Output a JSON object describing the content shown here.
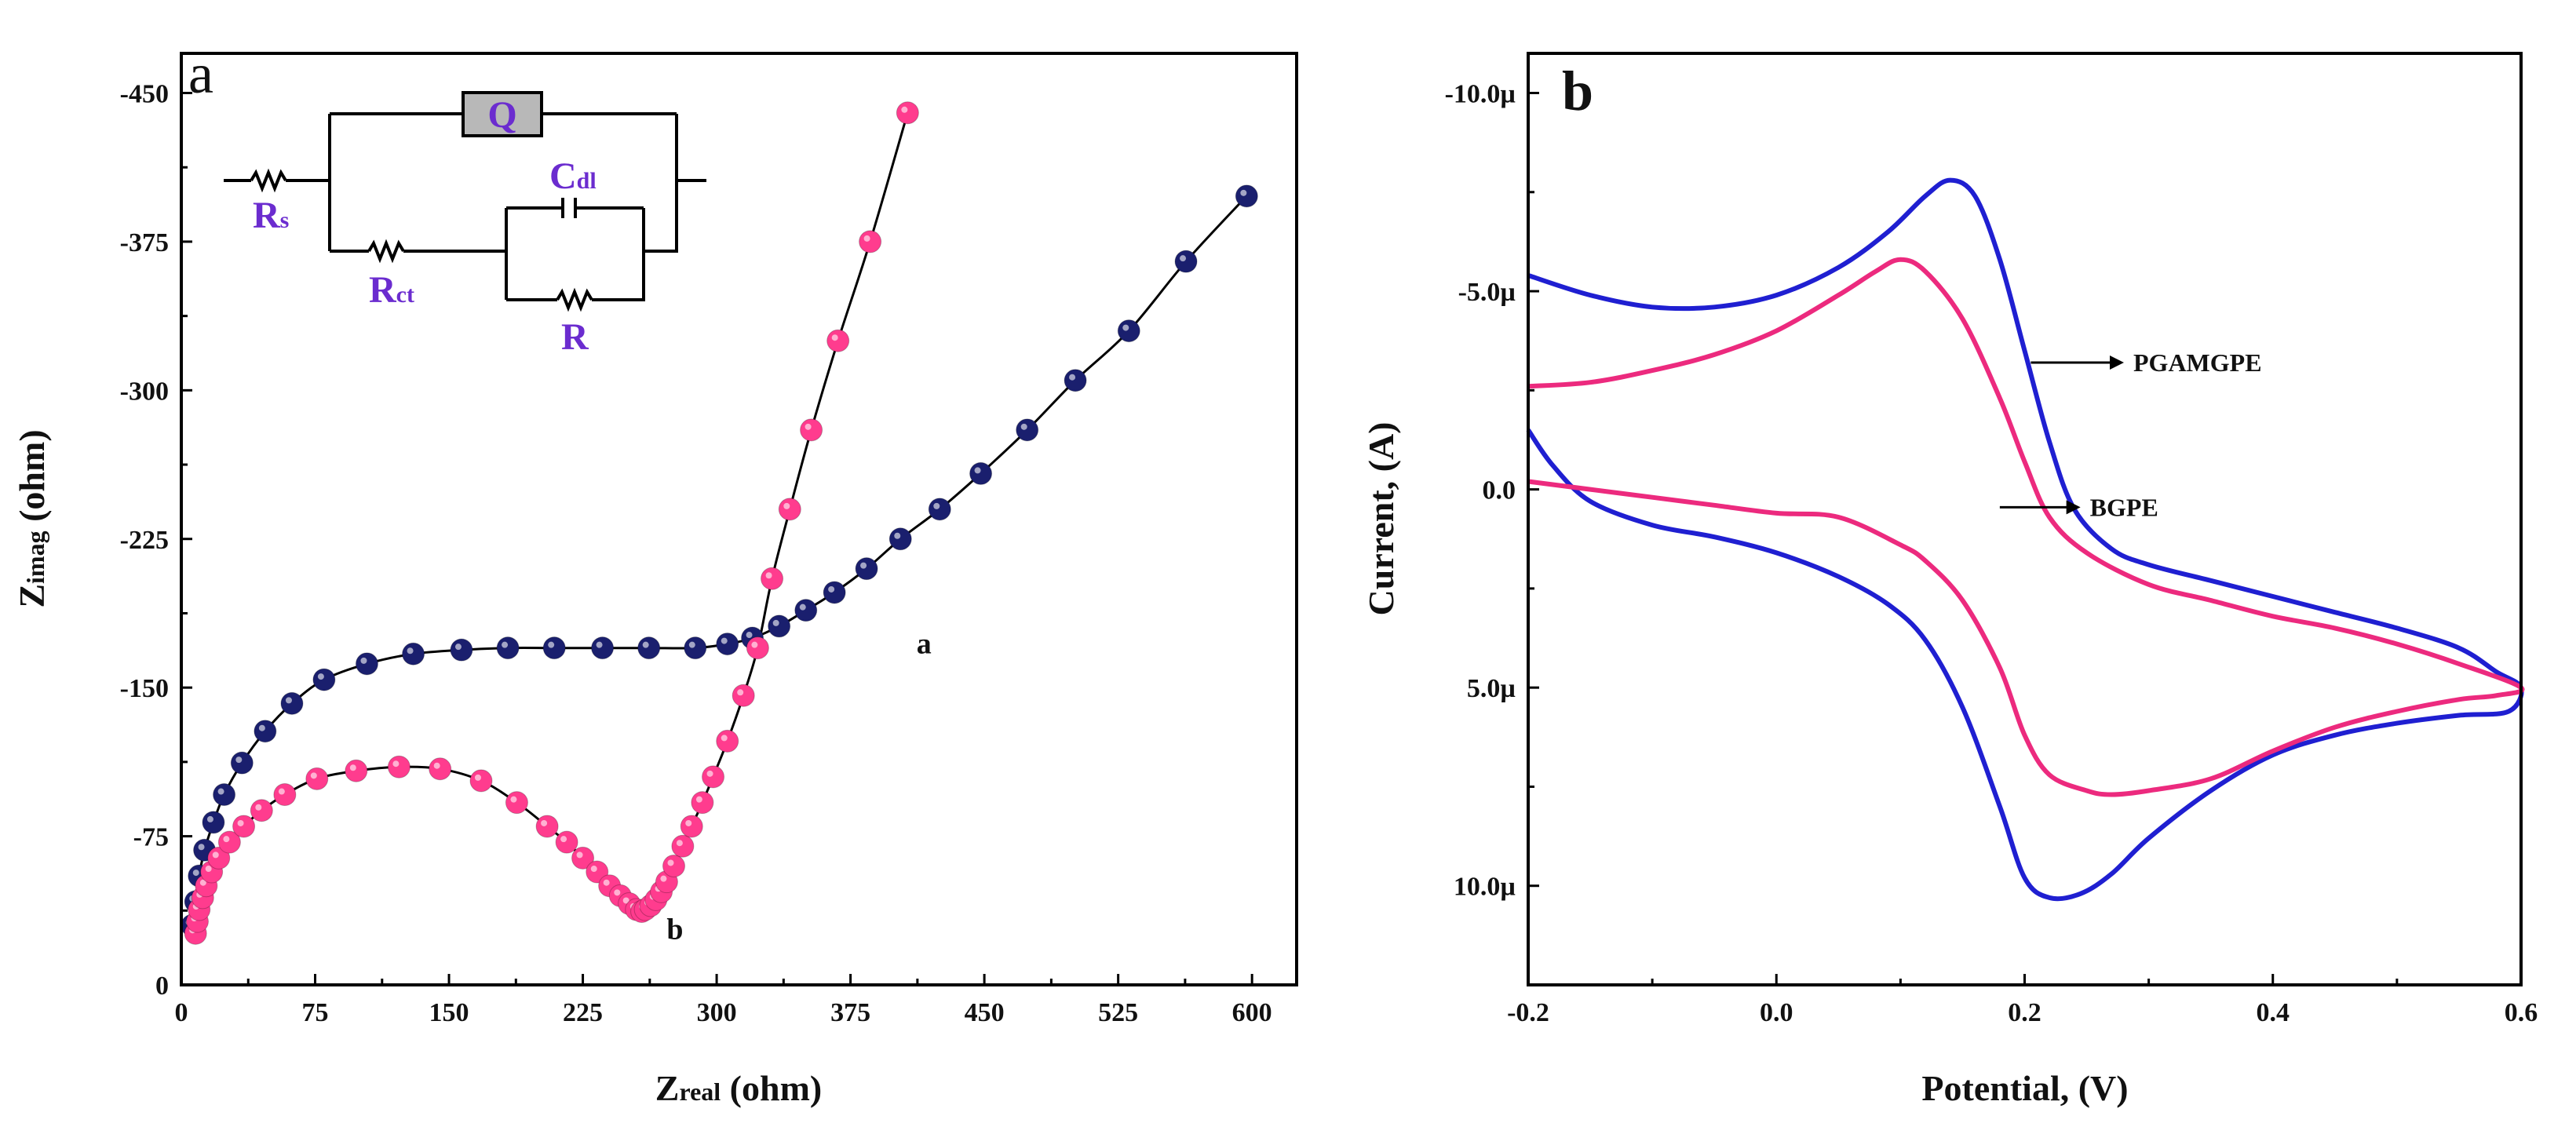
{
  "chart_data": [
    {
      "type": "scatter",
      "panel": "a",
      "title": "",
      "xlabel": "Zreal (ohm)",
      "xlabel_main": "Z",
      "xlabel_sub": "real",
      "xlabel_unit": " (ohm)",
      "ylabel": "Zimag (ohm)",
      "ylabel_main": "Z",
      "ylabel_sub": "imag",
      "ylabel_unit": " (ohm)",
      "xlim": [
        0,
        625
      ],
      "ylim": [
        0,
        470
      ],
      "xticks": [
        0,
        75,
        150,
        225,
        300,
        375,
        450,
        525,
        600
      ],
      "xtick_labels": [
        "0",
        "75",
        "150",
        "225",
        "300",
        "375",
        "450",
        "525",
        "600"
      ],
      "yticks": [
        0,
        75,
        150,
        225,
        300,
        375,
        450
      ],
      "ytick_labels": [
        "0",
        "-75",
        "-150",
        "-225",
        "-300",
        "-375",
        "-450"
      ],
      "grid": false,
      "series": [
        {
          "name": "a",
          "color": "#1a1f6e",
          "label_at": [
            412,
            172
          ],
          "points": [
            [
              6,
              30
            ],
            [
              8,
              42
            ],
            [
              10,
              55
            ],
            [
              13,
              68
            ],
            [
              18,
              82
            ],
            [
              24,
              96
            ],
            [
              34,
              112
            ],
            [
              47,
              128
            ],
            [
              62,
              142
            ],
            [
              80,
              154
            ],
            [
              104,
              162
            ],
            [
              130,
              167
            ],
            [
              157,
              169
            ],
            [
              183,
              170
            ],
            [
              209,
              170
            ],
            [
              236,
              170
            ],
            [
              262,
              170
            ],
            [
              288,
              170
            ],
            [
              306,
              172
            ],
            [
              320,
              175
            ],
            [
              335,
              181
            ],
            [
              350,
              189
            ],
            [
              366,
              198
            ],
            [
              384,
              210
            ],
            [
              403,
              225
            ],
            [
              425,
              240
            ],
            [
              448,
              258
            ],
            [
              474,
              280
            ],
            [
              501,
              305
            ],
            [
              531,
              330
            ],
            [
              563,
              365
            ],
            [
              597,
              398
            ]
          ]
        },
        {
          "name": "b",
          "color": "#ff3c8e",
          "label_at": [
            272,
            28
          ],
          "points": [
            [
              8,
              26
            ],
            [
              9,
              32
            ],
            [
              10,
              38
            ],
            [
              12,
              44
            ],
            [
              14,
              50
            ],
            [
              17,
              57
            ],
            [
              21,
              64
            ],
            [
              27,
              72
            ],
            [
              35,
              80
            ],
            [
              45,
              88
            ],
            [
              58,
              96
            ],
            [
              76,
              104
            ],
            [
              98,
              108
            ],
            [
              122,
              110
            ],
            [
              145,
              109
            ],
            [
              168,
              103
            ],
            [
              188,
              92
            ],
            [
              205,
              80
            ],
            [
              216,
              72
            ],
            [
              225,
              64
            ],
            [
              233,
              57
            ],
            [
              240,
              50
            ],
            [
              246,
              45
            ],
            [
              251,
              41
            ],
            [
              255,
              38
            ],
            [
              258,
              37
            ],
            [
              260,
              38
            ],
            [
              263,
              40
            ],
            [
              266,
              43
            ],
            [
              269,
              47
            ],
            [
              272,
              52
            ],
            [
              276,
              60
            ],
            [
              281,
              70
            ],
            [
              286,
              80
            ],
            [
              292,
              92
            ],
            [
              298,
              105
            ],
            [
              306,
              123
            ],
            [
              315,
              146
            ],
            [
              323,
              170
            ],
            [
              331,
              205
            ],
            [
              341,
              240
            ],
            [
              353,
              280
            ],
            [
              368,
              325
            ],
            [
              386,
              375
            ],
            [
              407,
              440
            ]
          ]
        }
      ],
      "circuit_labels": {
        "q": "Q",
        "rs_main": "R",
        "rs_sub": "s",
        "rct_main": "R",
        "rct_sub": "ct",
        "cdl_main": "C",
        "cdl_sub": "dl",
        "r": "R"
      }
    },
    {
      "type": "line",
      "panel": "b",
      "title": "",
      "xlabel": "Potential, (V)",
      "ylabel": "Current, (A)",
      "xlim": [
        -0.2,
        0.6
      ],
      "ylim": [
        12.5,
        -11.0
      ],
      "y_axis_inverted": true,
      "xticks": [
        -0.2,
        0.0,
        0.2,
        0.4,
        0.6
      ],
      "xtick_labels": [
        "-0.2",
        "0.0",
        "0.2",
        "0.4",
        "0.6"
      ],
      "yticks": [
        -10,
        -5,
        0,
        5,
        10
      ],
      "ytick_labels": [
        "-10.0µ",
        "-5.0µ",
        "0.0",
        "5.0µ",
        "10.0µ"
      ],
      "grid": false,
      "legend": [
        {
          "label": "PGAMGPE",
          "series": "PGAMGPE",
          "arrow_from": [
            0.205,
            -3.2
          ],
          "arrow_to": [
            0.28,
            -3.2
          ]
        },
        {
          "label": "BGPE",
          "series": "BGPE",
          "arrow_from": [
            0.18,
            0.45
          ],
          "arrow_to": [
            0.245,
            0.45
          ]
        }
      ],
      "series": [
        {
          "name": "PGAMGPE",
          "color": "#1f1fd1",
          "forward": [
            [
              -0.2,
              -5.4
            ],
            [
              -0.15,
              -4.9
            ],
            [
              -0.1,
              -4.6
            ],
            [
              -0.05,
              -4.6
            ],
            [
              0.0,
              -4.9
            ],
            [
              0.05,
              -5.6
            ],
            [
              0.09,
              -6.5
            ],
            [
              0.12,
              -7.4
            ],
            [
              0.14,
              -7.8
            ],
            [
              0.16,
              -7.4
            ],
            [
              0.18,
              -5.8
            ],
            [
              0.2,
              -3.5
            ],
            [
              0.22,
              -1.2
            ],
            [
              0.24,
              0.5
            ],
            [
              0.27,
              1.5
            ],
            [
              0.3,
              1.9
            ],
            [
              0.35,
              2.3
            ],
            [
              0.4,
              2.7
            ],
            [
              0.45,
              3.1
            ],
            [
              0.5,
              3.5
            ],
            [
              0.55,
              4.0
            ],
            [
              0.58,
              4.6
            ],
            [
              0.6,
              5.0
            ]
          ],
          "reverse": [
            [
              0.6,
              5.0
            ],
            [
              0.59,
              5.6
            ],
            [
              0.55,
              5.7
            ],
            [
              0.5,
              5.9
            ],
            [
              0.45,
              6.2
            ],
            [
              0.4,
              6.7
            ],
            [
              0.35,
              7.6
            ],
            [
              0.3,
              8.8
            ],
            [
              0.27,
              9.7
            ],
            [
              0.245,
              10.2
            ],
            [
              0.22,
              10.3
            ],
            [
              0.2,
              9.8
            ],
            [
              0.18,
              8.0
            ],
            [
              0.15,
              5.5
            ],
            [
              0.12,
              3.8
            ],
            [
              0.09,
              2.9
            ],
            [
              0.05,
              2.2
            ],
            [
              0.0,
              1.6
            ],
            [
              -0.05,
              1.2
            ],
            [
              -0.1,
              0.9
            ],
            [
              -0.15,
              0.3
            ],
            [
              -0.18,
              -0.6
            ],
            [
              -0.2,
              -1.5
            ]
          ]
        },
        {
          "name": "BGPE",
          "color": "#ec2a7e",
          "forward": [
            [
              -0.2,
              -2.6
            ],
            [
              -0.15,
              -2.7
            ],
            [
              -0.1,
              -3.0
            ],
            [
              -0.05,
              -3.4
            ],
            [
              0.0,
              -4.0
            ],
            [
              0.05,
              -4.9
            ],
            [
              0.08,
              -5.5
            ],
            [
              0.1,
              -5.8
            ],
            [
              0.12,
              -5.5
            ],
            [
              0.15,
              -4.3
            ],
            [
              0.18,
              -2.3
            ],
            [
              0.2,
              -0.7
            ],
            [
              0.22,
              0.7
            ],
            [
              0.25,
              1.6
            ],
            [
              0.3,
              2.4
            ],
            [
              0.35,
              2.8
            ],
            [
              0.4,
              3.2
            ],
            [
              0.45,
              3.5
            ],
            [
              0.5,
              3.9
            ],
            [
              0.55,
              4.4
            ],
            [
              0.6,
              5.0
            ]
          ],
          "reverse": [
            [
              0.6,
              5.0
            ],
            [
              0.58,
              5.2
            ],
            [
              0.55,
              5.3
            ],
            [
              0.5,
              5.6
            ],
            [
              0.45,
              6.0
            ],
            [
              0.4,
              6.6
            ],
            [
              0.35,
              7.3
            ],
            [
              0.3,
              7.6
            ],
            [
              0.27,
              7.7
            ],
            [
              0.25,
              7.6
            ],
            [
              0.22,
              7.2
            ],
            [
              0.2,
              6.2
            ],
            [
              0.18,
              4.5
            ],
            [
              0.15,
              2.8
            ],
            [
              0.12,
              1.8
            ],
            [
              0.1,
              1.4
            ],
            [
              0.05,
              0.7
            ],
            [
              0.0,
              0.6
            ],
            [
              -0.05,
              0.4
            ],
            [
              -0.1,
              0.2
            ],
            [
              -0.15,
              0.0
            ],
            [
              -0.2,
              -0.2
            ]
          ]
        }
      ]
    }
  ]
}
